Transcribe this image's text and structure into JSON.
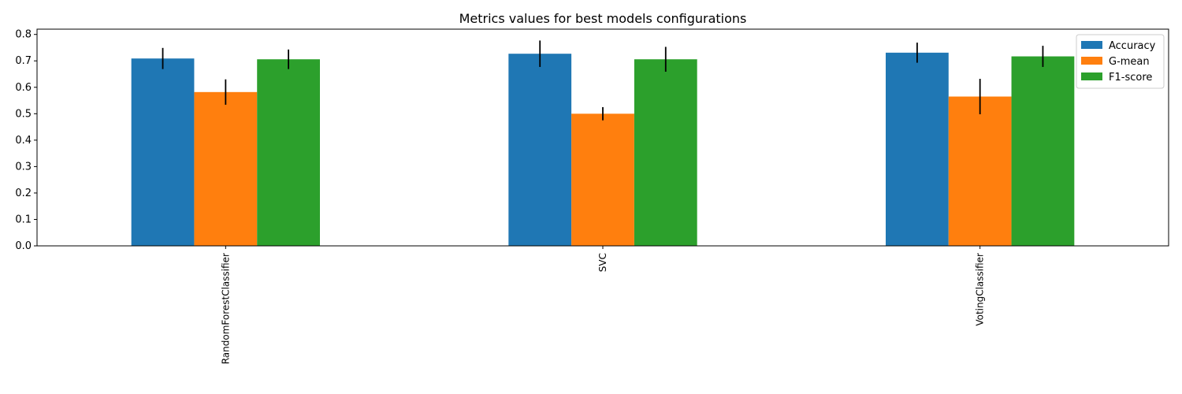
{
  "chart_data": {
    "type": "bar",
    "title": "Metrics values for best models configurations",
    "xlabel": "",
    "ylabel": "",
    "categories": [
      "RandomForestClassifier",
      "SVC",
      "VotingClassifier"
    ],
    "series": [
      {
        "name": "Accuracy",
        "color": "#1f77b4",
        "values": [
          0.709,
          0.727,
          0.731
        ],
        "errors": [
          0.04,
          0.05,
          0.038
        ]
      },
      {
        "name": "G-mean",
        "color": "#ff7f0e",
        "values": [
          0.582,
          0.5,
          0.565
        ],
        "errors": [
          0.048,
          0.025,
          0.067
        ]
      },
      {
        "name": "F1-score",
        "color": "#2ca02c",
        "values": [
          0.706,
          0.706,
          0.717
        ],
        "errors": [
          0.037,
          0.047,
          0.04
        ]
      }
    ],
    "ylim": [
      0,
      0.82
    ],
    "yticks": [
      "0.0",
      "0.1",
      "0.2",
      "0.3",
      "0.4",
      "0.5",
      "0.6",
      "0.7",
      "0.8"
    ],
    "grid": false,
    "legend_position": "top-right"
  }
}
